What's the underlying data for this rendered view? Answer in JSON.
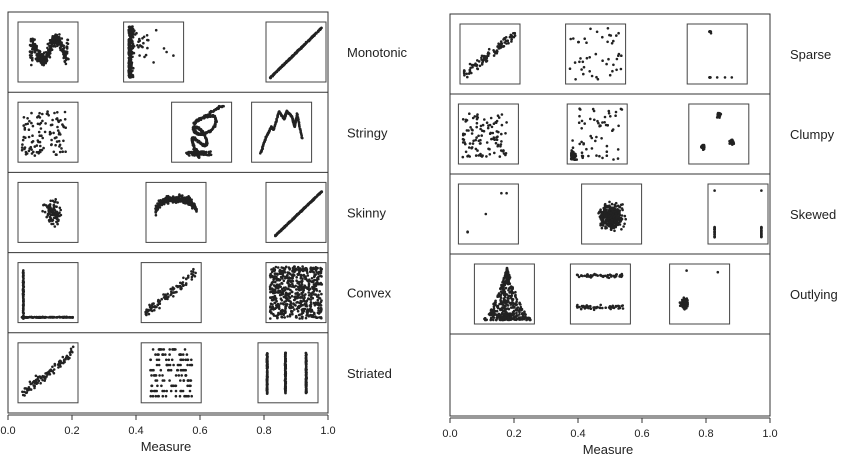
{
  "chart_data": [
    {
      "type": "scatter",
      "xlabel": "Measure",
      "xlim": [
        0,
        1
      ],
      "xticks": [
        "0.0",
        "0.2",
        "0.4",
        "0.6",
        "0.8",
        "1.0"
      ],
      "rows": [
        {
          "label": "Monotonic",
          "thumbnails": [
            {
              "measure": 0.125,
              "pattern": "m-band"
            },
            {
              "measure": 0.455,
              "pattern": "vertical-with-outliers"
            },
            {
              "measure": 0.9,
              "pattern": "diagonal-line"
            }
          ]
        },
        {
          "label": "Stringy",
          "thumbnails": [
            {
              "measure": 0.125,
              "pattern": "uniform-cloud"
            },
            {
              "measure": 0.605,
              "pattern": "tangled-string"
            },
            {
              "measure": 0.855,
              "pattern": "m-curve"
            }
          ]
        },
        {
          "label": "Skinny",
          "thumbnails": [
            {
              "measure": 0.125,
              "pattern": "center-cloud"
            },
            {
              "measure": 0.525,
              "pattern": "arch-band"
            },
            {
              "measure": 0.9,
              "pattern": "thin-diagonal"
            }
          ]
        },
        {
          "label": "Convex",
          "thumbnails": [
            {
              "measure": 0.125,
              "pattern": "l-shape"
            },
            {
              "measure": 0.51,
              "pattern": "diagonal-cloud"
            },
            {
              "measure": 0.9,
              "pattern": "dense-uniform"
            }
          ]
        },
        {
          "label": "Striated",
          "thumbnails": [
            {
              "measure": 0.125,
              "pattern": "diagonal-cloud"
            },
            {
              "measure": 0.51,
              "pattern": "horizontal-stripes"
            },
            {
              "measure": 0.875,
              "pattern": "vertical-stripes"
            }
          ]
        }
      ]
    },
    {
      "type": "scatter",
      "xlabel": "Measure",
      "xlim": [
        0,
        1
      ],
      "xticks": [
        "0.0",
        "0.2",
        "0.4",
        "0.6",
        "0.8",
        "1.0"
      ],
      "rows": [
        {
          "label": "Sparse",
          "thumbnails": [
            {
              "measure": 0.125,
              "pattern": "diagonal-cloud"
            },
            {
              "measure": 0.455,
              "pattern": "sparse-scatter"
            },
            {
              "measure": 0.835,
              "pattern": "few-vertical"
            }
          ]
        },
        {
          "label": "Clumpy",
          "thumbnails": [
            {
              "measure": 0.12,
              "pattern": "uniform-cloud"
            },
            {
              "measure": 0.46,
              "pattern": "bottom-left-clumps"
            },
            {
              "measure": 0.84,
              "pattern": "three-clumps"
            }
          ]
        },
        {
          "label": "Skewed",
          "thumbnails": [
            {
              "measure": 0.12,
              "pattern": "five-points"
            },
            {
              "measure": 0.505,
              "pattern": "dense-blob"
            },
            {
              "measure": 0.9,
              "pattern": "edge-points"
            }
          ]
        },
        {
          "label": "Outlying",
          "thumbnails": [
            {
              "measure": 0.17,
              "pattern": "triangle-dense"
            },
            {
              "measure": 0.47,
              "pattern": "two-bands"
            },
            {
              "measure": 0.78,
              "pattern": "cluster-outliers"
            }
          ]
        }
      ]
    }
  ]
}
